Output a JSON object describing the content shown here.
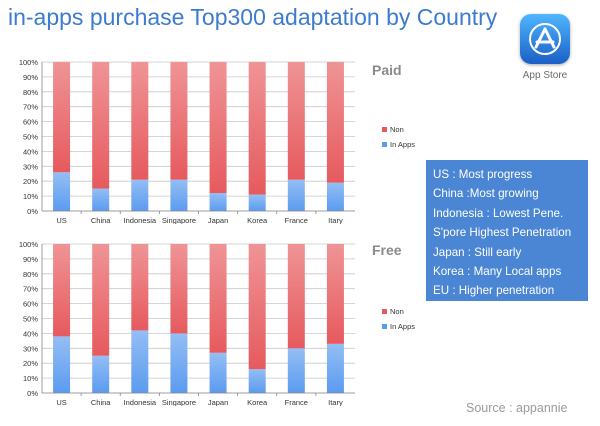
{
  "title": "in-apps purchase Top300 adaptation by Country",
  "app_store": {
    "label": "App Store",
    "icon": "app-store-icon"
  },
  "chart_data": [
    {
      "type": "bar",
      "stacked": true,
      "title": "Paid",
      "categories": [
        "US",
        "China",
        "Indonesia",
        "Singapore",
        "Japan",
        "Korea",
        "France",
        "Itary"
      ],
      "series": [
        {
          "name": "In Apps",
          "color": "#5b9bef",
          "values": [
            26,
            15,
            21,
            21,
            12,
            11,
            21,
            19
          ]
        },
        {
          "name": "Non",
          "color": "#e65a5e",
          "values": [
            74,
            85,
            79,
            79,
            88,
            89,
            79,
            81
          ]
        }
      ],
      "y_ticks": [
        "0%",
        "10%",
        "20%",
        "30%",
        "40%",
        "50%",
        "60%",
        "70%",
        "80%",
        "90%",
        "100%"
      ],
      "ylim": [
        0,
        100
      ],
      "grid": true,
      "legend": "right"
    },
    {
      "type": "bar",
      "stacked": true,
      "title": "Free",
      "categories": [
        "US",
        "China",
        "Indonesia",
        "Singapore",
        "Japan",
        "Korea",
        "France",
        "Itary"
      ],
      "series": [
        {
          "name": "In Apps",
          "color": "#5b9bef",
          "values": [
            38,
            25,
            42,
            40,
            27,
            16,
            30,
            33
          ]
        },
        {
          "name": "Non",
          "color": "#e65a5e",
          "values": [
            62,
            75,
            58,
            60,
            73,
            84,
            70,
            67
          ]
        }
      ],
      "y_ticks": [
        "0%",
        "10%",
        "20%",
        "30%",
        "40%",
        "50%",
        "60%",
        "70%",
        "80%",
        "90%",
        "100%"
      ],
      "ylim": [
        0,
        100
      ],
      "grid": true,
      "legend": "right"
    }
  ],
  "notes": [
    "US : Most progress",
    "China :Most growing",
    "Indonesia : Lowest Pene.",
    "S'pore Highest Penetration",
    "Japan : Still early",
    "Korea : Many Local apps",
    "EU : Higher penetration"
  ],
  "source": "Source : appannie"
}
